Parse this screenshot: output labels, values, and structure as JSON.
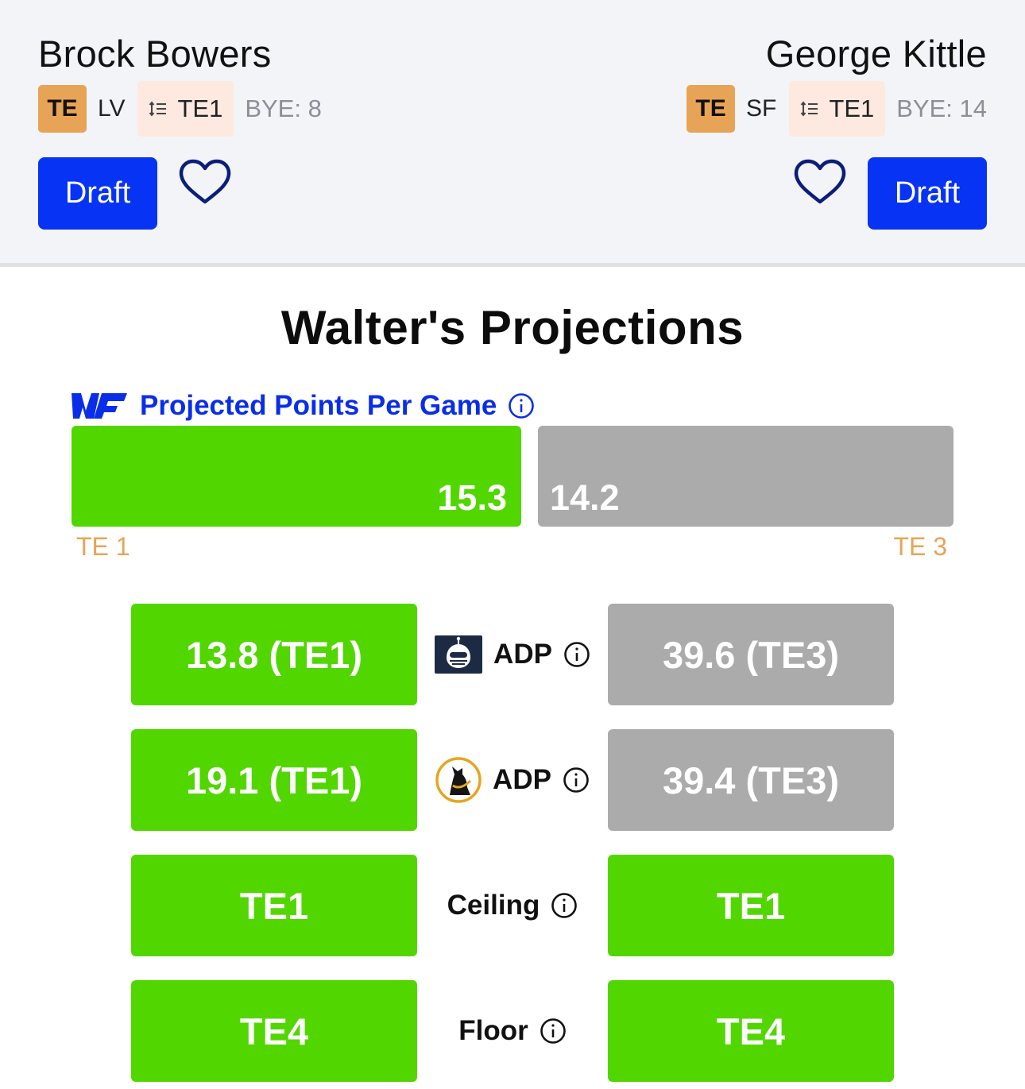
{
  "players": {
    "left": {
      "name": "Brock Bowers",
      "position": "TE",
      "team": "LV",
      "rank": "TE1",
      "bye": "BYE: 8",
      "draft_label": "Draft"
    },
    "right": {
      "name": "George Kittle",
      "position": "TE",
      "team": "SF",
      "rank": "TE1",
      "bye": "BYE: 14",
      "draft_label": "Draft"
    }
  },
  "projections": {
    "title": "Walter's Projections",
    "ppg": {
      "label": "Projected Points Per Game",
      "left_value": "15.3",
      "right_value": "14.2",
      "left_rank": "TE 1",
      "right_rank": "TE 3"
    },
    "rows": [
      {
        "label": "ADP",
        "logo": "robot-helmet-logo",
        "left": "13.8 (TE1)",
        "right": "39.6 (TE3)",
        "left_color": "green",
        "right_color": "gray"
      },
      {
        "label": "ADP",
        "logo": "cat-logo",
        "left": "19.1 (TE1)",
        "right": "39.4 (TE3)",
        "left_color": "green",
        "right_color": "gray"
      },
      {
        "label": "Ceiling",
        "left": "TE1",
        "right": "TE1",
        "left_color": "green",
        "right_color": "green"
      },
      {
        "label": "Floor",
        "left": "TE4",
        "right": "TE4",
        "left_color": "green",
        "right_color": "green"
      }
    ]
  },
  "colors": {
    "better": "#52d600",
    "worse": "#ababab",
    "accent": "#0733f5",
    "position": "#e8a456"
  }
}
